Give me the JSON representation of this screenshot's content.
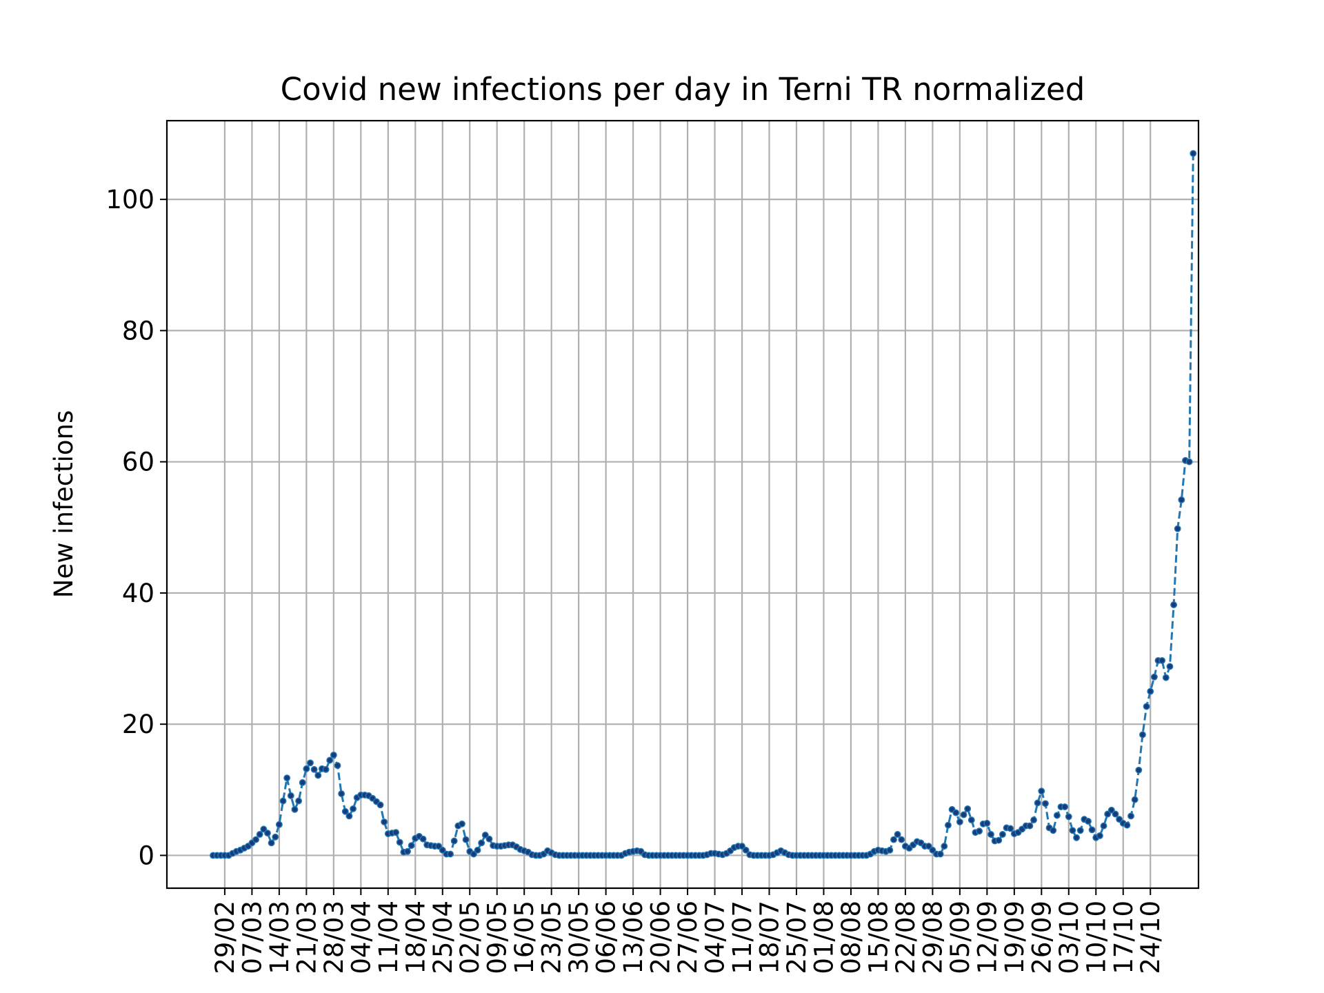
{
  "chart_data": {
    "type": "line",
    "title": "Covid new infections per day in Terni TR normalized",
    "xlabel": "",
    "ylabel": "New infections",
    "ylim": [
      -5,
      112
    ],
    "yticks": [
      0,
      20,
      40,
      60,
      80,
      100
    ],
    "grid": true,
    "line_style": "dashed",
    "marker": "dot",
    "colors": {
      "line": "#1f77b4",
      "marker_edge": "#1a3b7a",
      "grid": "#b0b0b0"
    },
    "x_tick_labels": [
      "29/02",
      "07/03",
      "14/03",
      "21/03",
      "28/03",
      "04/04",
      "11/04",
      "18/04",
      "25/04",
      "02/05",
      "09/05",
      "16/05",
      "23/05",
      "30/05",
      "06/06",
      "13/06",
      "20/06",
      "27/06",
      "04/07",
      "11/07",
      "18/07",
      "25/07",
      "01/08",
      "08/08",
      "15/08",
      "22/08",
      "29/08",
      "05/09",
      "12/09",
      "19/09",
      "26/09",
      "03/10",
      "10/10",
      "17/10",
      "24/10"
    ],
    "x_start_date": "2020-02-26",
    "x_tick_every_days": 7,
    "series": [
      {
        "values": [
          0,
          0,
          0,
          0,
          0,
          0.3,
          0.6,
          0.8,
          1.1,
          1.4,
          1.9,
          2.4,
          3.2,
          4.0,
          3.4,
          1.9,
          2.8,
          4.7,
          8.3,
          11.8,
          9.1,
          7.0,
          8.3,
          11.1,
          13.2,
          14.1,
          13.1,
          12.2,
          13.2,
          13.1,
          14.5,
          15.3,
          13.7,
          9.4,
          6.7,
          6.0,
          7.1,
          8.8,
          9.2,
          9.2,
          9.1,
          8.7,
          8.2,
          7.7,
          5.1,
          3.3,
          3.4,
          3.5,
          2.0,
          0.5,
          0.6,
          1.5,
          2.6,
          2.9,
          2.5,
          1.6,
          1.5,
          1.4,
          1.4,
          0.8,
          0.2,
          0.2,
          2.2,
          4.5,
          4.8,
          2.4,
          0.6,
          0.2,
          0.8,
          1.9,
          3.1,
          2.5,
          1.5,
          1.4,
          1.4,
          1.5,
          1.6,
          1.6,
          1.3,
          0.9,
          0.7,
          0.5,
          0.1,
          0.0,
          0.0,
          0.2,
          0.7,
          0.4,
          0.1,
          0,
          0,
          0,
          0,
          0,
          0,
          0,
          0,
          0,
          0,
          0,
          0,
          0,
          0,
          0,
          0,
          0,
          0.3,
          0.5,
          0.6,
          0.7,
          0.6,
          0.1,
          0,
          0,
          0,
          0,
          0,
          0,
          0,
          0,
          0,
          0,
          0,
          0,
          0,
          0,
          0,
          0.1,
          0.3,
          0.3,
          0.2,
          0.1,
          0.3,
          0.7,
          1.2,
          1.4,
          1.4,
          0.8,
          0.1,
          0,
          0,
          0,
          0,
          0,
          0.1,
          0.4,
          0.7,
          0.4,
          0.1,
          0,
          0,
          0,
          0,
          0,
          0,
          0,
          0,
          0,
          0,
          0,
          0,
          0,
          0,
          0,
          0,
          0,
          0,
          0,
          0,
          0.2,
          0.6,
          0.8,
          0.7,
          0.6,
          0.8,
          2.4,
          3.2,
          2.4,
          1.4,
          1.1,
          1.6,
          2.1,
          1.9,
          1.4,
          1.4,
          0.8,
          0.2,
          0.2,
          1.4,
          4.6,
          7.0,
          6.5,
          5.1,
          6.2,
          7.1,
          5.4,
          3.5,
          3.7,
          4.8,
          4.9,
          3.2,
          2.2,
          2.3,
          3.2,
          4.2,
          4.1,
          3.3,
          3.5,
          4.0,
          4.5,
          4.5,
          5.4,
          8.0,
          9.8,
          7.9,
          4.2,
          3.8,
          6.1,
          7.4,
          7.4,
          5.9,
          3.8,
          2.7,
          3.8,
          5.5,
          5.2,
          3.9,
          2.7,
          3.0,
          4.5,
          6.3,
          6.9,
          6.3,
          5.5,
          4.9,
          4.6,
          6.0,
          8.5,
          13.0,
          18.4,
          22.7,
          25.0,
          27.2,
          29.7,
          29.7,
          27.1,
          28.8,
          38.2,
          49.8,
          54.2,
          60.2,
          60.0,
          107.0
        ]
      }
    ]
  }
}
